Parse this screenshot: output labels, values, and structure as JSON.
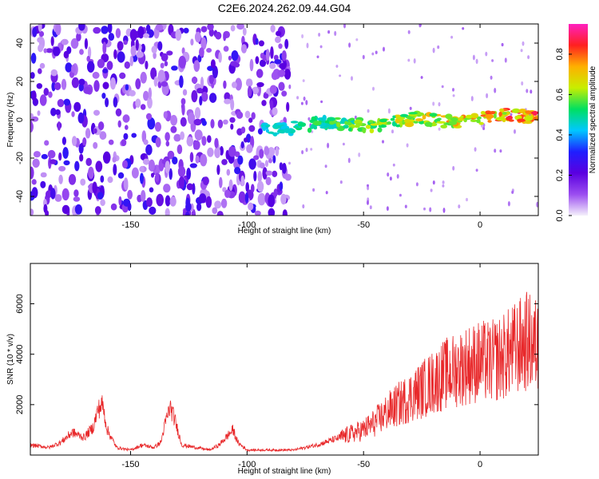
{
  "title": "C2E6.2024.262.09.44.G04",
  "chart_data": [
    {
      "type": "heatmap",
      "xlabel": "Height of straight line (km)",
      "ylabel": "Frequency (Hz)",
      "xlim": [
        -193,
        25
      ],
      "ylim": [
        -50,
        50
      ],
      "xticks": [
        -150,
        -100,
        -50,
        0
      ],
      "yticks": [
        -40,
        -20,
        0,
        20,
        40
      ],
      "colorbar": {
        "label": "Normalized spectral amplitude",
        "range": [
          0,
          0.95
        ],
        "ticks": [
          "0.0",
          "0.2",
          "0.4",
          "0.6",
          "0.8"
        ],
        "colors": [
          "#f4f0fb",
          "#9b4df0",
          "#5a00e0",
          "#1f1fff",
          "#00c8ff",
          "#00e060",
          "#c8ee00",
          "#ffb000",
          "#ff2020",
          "#ff20c0"
        ]
      },
      "features": [
        {
          "name": "noise",
          "x": [
            -193,
            -82
          ],
          "amplitude": 0.25
        },
        {
          "name": "signal",
          "x": [
            -93,
            25
          ],
          "frequency_hz": [
            -4,
            2
          ],
          "amplitude": [
            0.3,
            0.92
          ]
        }
      ]
    },
    {
      "type": "line",
      "xlabel": "Height of straight line (km)",
      "ylabel": "SNR (10 * v/v)",
      "xlim": [
        -193,
        25
      ],
      "ylim": [
        0,
        7600
      ],
      "xticks": [
        -150,
        -100,
        -50,
        0
      ],
      "yticks": [
        2000,
        4000,
        6000
      ],
      "color": "#e8282a",
      "x": [
        -193,
        -185,
        -180,
        -175,
        -170,
        -166,
        -164,
        -162,
        -160,
        -156,
        -150,
        -145,
        -140,
        -137,
        -135,
        -133,
        -131,
        -128,
        -122,
        -116,
        -112,
        -108,
        -106,
        -104,
        -100,
        -90,
        -80,
        -70,
        -60,
        -50,
        -45,
        -40,
        -35,
        -30,
        -25,
        -20,
        -15,
        -10,
        -5,
        0,
        5,
        10,
        15,
        20,
        25
      ],
      "values": [
        400,
        300,
        500,
        900,
        700,
        1100,
        1800,
        2000,
        1000,
        300,
        200,
        400,
        300,
        500,
        1300,
        1900,
        1400,
        400,
        300,
        200,
        400,
        800,
        1000,
        500,
        200,
        200,
        200,
        400,
        700,
        1000,
        1300,
        1700,
        2000,
        2300,
        2600,
        2900,
        3200,
        3400,
        3600,
        3700,
        3700,
        3900,
        4200,
        4500,
        4300
      ]
    }
  ]
}
